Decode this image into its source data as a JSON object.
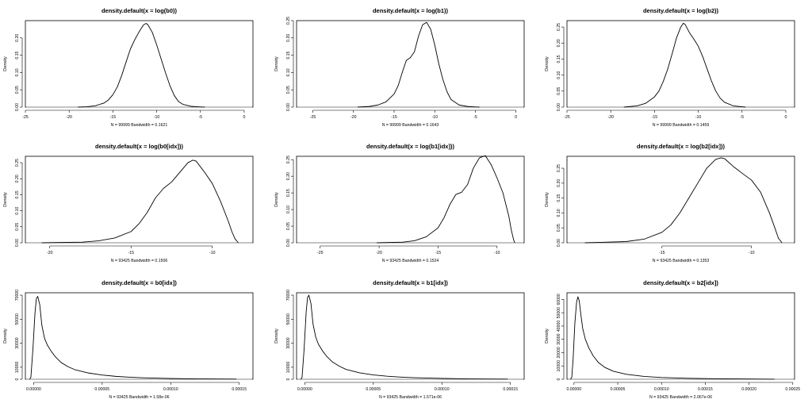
{
  "colors": {
    "line": "#000000",
    "baseline": "#a8a8a8",
    "background": "#ffffff"
  },
  "chart_data": [
    {
      "type": "line",
      "title": "density.default(x = log(b0))",
      "subtitle": "N = 99999   Bandwidth = 0.1621",
      "ylabel": "Density",
      "xlim": [
        -25,
        1
      ],
      "ylim": [
        0,
        0.25
      ],
      "xticks": [
        -25,
        -20,
        -15,
        -10,
        -5,
        0
      ],
      "xtick_labels": [
        "-25",
        "-20",
        "-15",
        "-10",
        "-5",
        "0"
      ],
      "yticks": [
        0,
        0.05,
        0.1,
        0.15,
        0.2
      ],
      "ytick_labels": [
        "0.00",
        "0.05",
        "0.10",
        "0.15",
        "0.20"
      ],
      "grid": false,
      "series": [
        {
          "x": [
            -19.0,
            -18.0,
            -17.0,
            -16.0,
            -15.5,
            -15.0,
            -14.5,
            -14.0,
            -13.5,
            -13.0,
            -12.5,
            -12.0,
            -11.5,
            -11.2,
            -11.0,
            -10.5,
            -10.0,
            -9.5,
            -9.0,
            -8.5,
            -8.0,
            -7.5,
            -7.0,
            -6.0,
            -5.0,
            -4.5
          ],
          "y": [
            0.0,
            0.001,
            0.004,
            0.012,
            0.021,
            0.036,
            0.058,
            0.091,
            0.13,
            0.168,
            0.195,
            0.218,
            0.238,
            0.242,
            0.238,
            0.216,
            0.18,
            0.14,
            0.1,
            0.063,
            0.034,
            0.016,
            0.008,
            0.002,
            0.0005,
            0.0
          ]
        }
      ]
    },
    {
      "type": "line",
      "title": "density.default(x = log(b1))",
      "subtitle": "N = 99999   Bandwidth = 0.1643",
      "ylabel": "Density",
      "xlim": [
        -27,
        1
      ],
      "ylim": [
        0,
        0.25
      ],
      "xticks": [
        -25,
        -20,
        -15,
        -10,
        -5,
        0
      ],
      "xtick_labels": [
        "-25",
        "-20",
        "-15",
        "-10",
        "-5",
        "0"
      ],
      "yticks": [
        0,
        0.05,
        0.1,
        0.15,
        0.2,
        0.25
      ],
      "ytick_labels": [
        "0.00",
        "0.05",
        "0.10",
        "0.15",
        "0.20",
        "0.25"
      ],
      "grid": false,
      "series": [
        {
          "x": [
            -19.5,
            -18.0,
            -17.0,
            -16.0,
            -15.0,
            -14.5,
            -14.0,
            -13.5,
            -13.0,
            -12.5,
            -12.0,
            -11.5,
            -11.0,
            -10.5,
            -10.0,
            -9.5,
            -9.0,
            -8.5,
            -8.0,
            -7.0,
            -6.0,
            -5.0,
            -4.5
          ],
          "y": [
            0.0,
            0.002,
            0.006,
            0.015,
            0.038,
            0.062,
            0.1,
            0.135,
            0.143,
            0.16,
            0.205,
            0.238,
            0.245,
            0.225,
            0.18,
            0.125,
            0.08,
            0.045,
            0.022,
            0.006,
            0.002,
            0.0005,
            0.0
          ]
        }
      ]
    },
    {
      "type": "line",
      "title": "density.default(x = log(b2))",
      "subtitle": "N = 99999   Bandwidth = 0.1459",
      "ylabel": "Density",
      "xlim": [
        -25,
        1
      ],
      "ylim": [
        0,
        0.27
      ],
      "xticks": [
        -25,
        -20,
        -15,
        -10,
        -5,
        0
      ],
      "xtick_labels": [
        "-25",
        "-20",
        "-15",
        "-10",
        "-5",
        "0"
      ],
      "yticks": [
        0,
        0.05,
        0.1,
        0.15,
        0.2,
        0.25
      ],
      "ytick_labels": [
        "0.00",
        "0.05",
        "0.10",
        "0.15",
        "0.20",
        "0.25"
      ],
      "grid": false,
      "series": [
        {
          "x": [
            -18.5,
            -17.0,
            -16.0,
            -15.0,
            -14.5,
            -14.0,
            -13.5,
            -13.0,
            -12.5,
            -12.0,
            -11.7,
            -11.5,
            -11.0,
            -10.5,
            -10.0,
            -9.5,
            -9.0,
            -8.5,
            -8.0,
            -7.5,
            -7.0,
            -6.0,
            -5.0,
            -4.6
          ],
          "y": [
            0.0,
            0.004,
            0.012,
            0.032,
            0.05,
            0.08,
            0.118,
            0.165,
            0.215,
            0.25,
            0.262,
            0.258,
            0.232,
            0.212,
            0.19,
            0.158,
            0.12,
            0.082,
            0.05,
            0.028,
            0.015,
            0.004,
            0.001,
            0.0
          ]
        }
      ]
    },
    {
      "type": "line",
      "title": "density.default(x = log(b0[idx]))",
      "subtitle": "N = 93425   Bandwidth = 0.1506",
      "ylabel": "Density",
      "xlim": [
        -21.5,
        -7.5
      ],
      "ylim": [
        0,
        0.27
      ],
      "xticks": [
        -20,
        -15,
        -10
      ],
      "xtick_labels": [
        "-20",
        "-15",
        "-10"
      ],
      "yticks": [
        0,
        0.05,
        0.1,
        0.15,
        0.2,
        0.25
      ],
      "ytick_labels": [
        "0.00",
        "0.05",
        "0.10",
        "0.15",
        "0.20",
        "0.25"
      ],
      "grid": false,
      "series": [
        {
          "x": [
            -20.5,
            -18.0,
            -17.0,
            -16.0,
            -15.0,
            -14.5,
            -14.0,
            -13.5,
            -13.0,
            -12.5,
            -12.0,
            -11.5,
            -11.2,
            -11.0,
            -10.5,
            -10.0,
            -9.5,
            -9.0,
            -8.8,
            -8.6,
            -8.4
          ],
          "y": [
            0.0,
            0.002,
            0.006,
            0.015,
            0.035,
            0.06,
            0.095,
            0.14,
            0.17,
            0.19,
            0.22,
            0.25,
            0.258,
            0.255,
            0.222,
            0.185,
            0.13,
            0.065,
            0.035,
            0.012,
            0.0
          ]
        }
      ]
    },
    {
      "type": "line",
      "title": "density.default(x = log(b1[idx]))",
      "subtitle": "N = 93425   Bandwidth = 0.1524",
      "ylabel": "Density",
      "xlim": [
        -27,
        -7.7
      ],
      "ylim": [
        0,
        0.26
      ],
      "xticks": [
        -25,
        -20,
        -15,
        -10
      ],
      "xtick_labels": [
        "-25",
        "-20",
        "-15",
        "-10"
      ],
      "yticks": [
        0,
        0.05,
        0.1,
        0.15,
        0.2,
        0.25
      ],
      "ytick_labels": [
        "0.00",
        "0.05",
        "0.10",
        "0.15",
        "0.20",
        "0.25"
      ],
      "grid": false,
      "series": [
        {
          "x": [
            -20.2,
            -18.0,
            -17.0,
            -16.0,
            -15.0,
            -14.5,
            -14.0,
            -13.5,
            -13.0,
            -12.5,
            -12.0,
            -11.5,
            -11.0,
            -10.5,
            -10.0,
            -9.5,
            -9.0,
            -8.8,
            -8.6,
            -8.5
          ],
          "y": [
            0.0,
            0.002,
            0.006,
            0.018,
            0.045,
            0.075,
            0.115,
            0.145,
            0.152,
            0.175,
            0.225,
            0.255,
            0.262,
            0.235,
            0.195,
            0.15,
            0.08,
            0.04,
            0.01,
            0.0
          ]
        }
      ]
    },
    {
      "type": "line",
      "title": "density.default(x = log(b2[idx]))",
      "subtitle": "N = 93425   Bandwidth = 0.1353",
      "ylabel": "Density",
      "xlim": [
        -20.3,
        -7.6
      ],
      "ylim": [
        0,
        0.29
      ],
      "xticks": [
        -15,
        -10
      ],
      "xtick_labels": [
        "-15",
        "-10"
      ],
      "yticks": [
        0,
        0.05,
        0.1,
        0.15,
        0.2,
        0.25
      ],
      "ytick_labels": [
        "0.00",
        "0.05",
        "0.10",
        "0.15",
        "0.20",
        "0.25"
      ],
      "grid": false,
      "series": [
        {
          "x": [
            -19.3,
            -17.0,
            -16.0,
            -15.0,
            -14.5,
            -14.0,
            -13.5,
            -13.0,
            -12.5,
            -12.0,
            -11.7,
            -11.5,
            -11.0,
            -10.5,
            -10.0,
            -9.5,
            -9.0,
            -8.7,
            -8.5,
            -8.3
          ],
          "y": [
            0.0,
            0.004,
            0.012,
            0.035,
            0.06,
            0.1,
            0.15,
            0.2,
            0.25,
            0.28,
            0.285,
            0.282,
            0.255,
            0.232,
            0.21,
            0.17,
            0.1,
            0.05,
            0.015,
            0.0
          ]
        }
      ]
    },
    {
      "type": "line",
      "title": "density.default(x = b0[idx])",
      "subtitle": "N = 93425   Bandwidth = 1.58e-06",
      "ylabel": "Density",
      "xlim": [
        -6e-06,
        0.00016
      ],
      "ylim": [
        0,
        72000
      ],
      "xticks": [
        0,
        5e-05,
        0.0001,
        0.00015
      ],
      "xtick_labels": [
        "0.00000",
        "0.00005",
        "0.00010",
        "0.00015"
      ],
      "yticks": [
        0,
        10000,
        30000,
        50000,
        70000
      ],
      "ytick_labels": [
        "0",
        "10000",
        "30000",
        "50000",
        "70000"
      ],
      "grid": false,
      "series": [
        {
          "x": [
            -3e-06,
            -2e-06,
            -5e-07,
            1e-06,
            2e-06,
            3e-06,
            4.5e-06,
            6e-06,
            8e-06,
            1e-05,
            1.3e-05,
            1.6e-05,
            2e-05,
            2.5e-05,
            3e-05,
            4e-05,
            5e-05,
            6e-05,
            7e-05,
            8e-05,
            0.0001,
            0.00012,
            0.000148
          ],
          "y": [
            0,
            1500,
            25000,
            55000,
            67000,
            69000,
            62000,
            45000,
            34000,
            28500,
            23000,
            18500,
            14000,
            10500,
            8000,
            5200,
            3500,
            2400,
            1700,
            1200,
            650,
            300,
            100
          ]
        }
      ]
    },
    {
      "type": "line",
      "title": "density.default(x = b1[idx])",
      "subtitle": "N = 93425   Bandwidth = 1.571e-06",
      "ylabel": "Density",
      "xlim": [
        -6e-06,
        0.00016
      ],
      "ylim": [
        0,
        72000
      ],
      "xticks": [
        0,
        5e-05,
        0.0001,
        0.00015
      ],
      "xtick_labels": [
        "0.00000",
        "0.00005",
        "0.00010",
        "0.00015"
      ],
      "yticks": [
        0,
        10000,
        30000,
        50000,
        70000
      ],
      "ytick_labels": [
        "0",
        "10000",
        "30000",
        "50000",
        "70000"
      ],
      "grid": false,
      "series": [
        {
          "x": [
            -3e-06,
            -2e-06,
            -5e-07,
            1e-06,
            2e-06,
            3e-06,
            4.5e-06,
            6e-06,
            8e-06,
            1e-05,
            1.3e-05,
            1.6e-05,
            2e-05,
            2.5e-05,
            3e-05,
            4e-05,
            5e-05,
            6e-05,
            7e-05,
            8e-05,
            0.0001,
            0.00012,
            0.000148
          ],
          "y": [
            0,
            1500,
            25000,
            56000,
            68000,
            70000,
            63000,
            46000,
            35000,
            29000,
            23500,
            19000,
            14500,
            11000,
            8200,
            5300,
            3600,
            2500,
            1750,
            1250,
            680,
            320,
            110
          ]
        }
      ]
    },
    {
      "type": "line",
      "title": "density.default(x = b2[idx])",
      "subtitle": "N = 93425   Bandwidth = 2.067e-06",
      "ylabel": "Density",
      "xlim": [
        -8e-06,
        0.000252
      ],
      "ylim": [
        0,
        65000
      ],
      "xticks": [
        0,
        5e-05,
        0.0001,
        0.00015,
        0.0002,
        0.00025
      ],
      "xtick_labels": [
        "0.00000",
        "0.00005",
        "0.00010",
        "0.00015",
        "0.00020",
        "0.00025"
      ],
      "yticks": [
        0,
        10000,
        20000,
        30000,
        40000,
        50000,
        60000
      ],
      "ytick_labels": [
        "0",
        "10000",
        "20000",
        "30000",
        "40000",
        "50000",
        "60000"
      ],
      "grid": false,
      "series": [
        {
          "x": [
            -4e-06,
            -2.5e-06,
            -1e-06,
            1e-06,
            3e-06,
            4.5e-06,
            6e-06,
            8e-06,
            1e-05,
            1.3e-05,
            1.7e-05,
            2.2e-05,
            2.8e-05,
            3.5e-05,
            4.5e-05,
            6e-05,
            8e-05,
            0.0001,
            0.00013,
            0.00016,
            0.0002,
            0.000229
          ],
          "y": [
            0,
            1500,
            15000,
            42000,
            58000,
            62000,
            59000,
            48000,
            38000,
            30000,
            23500,
            17500,
            12500,
            9000,
            6000,
            3700,
            2100,
            1300,
            700,
            380,
            160,
            50
          ]
        }
      ]
    }
  ]
}
